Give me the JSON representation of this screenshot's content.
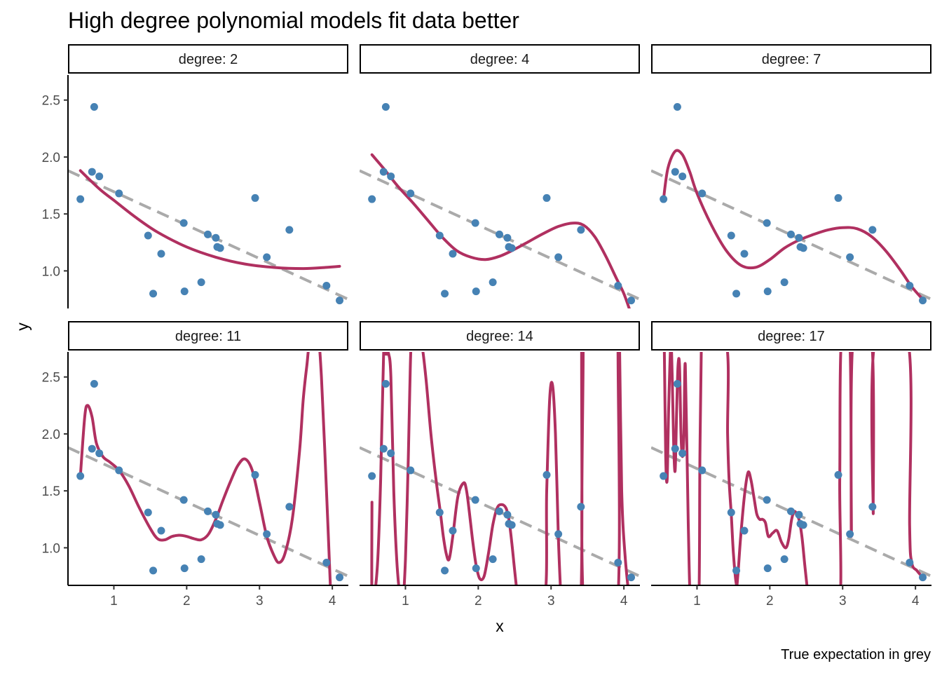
{
  "chart_data": {
    "type": "scatter",
    "title": "High degree polynomial models fit data better",
    "xlabel": "x",
    "ylabel": "y",
    "caption": "True expectation in grey",
    "facet_prefix": "degree: ",
    "xlim": [
      0.37,
      4.22
    ],
    "ylim": [
      0.67,
      2.72
    ],
    "x_ticks": [
      1,
      2,
      3,
      4
    ],
    "x_tick_labels": [
      "1",
      "2",
      "3",
      "4"
    ],
    "y_ticks": [
      1.0,
      1.5,
      2.0,
      2.5
    ],
    "y_tick_labels": [
      "1.0",
      "1.5",
      "2.0",
      "2.5"
    ],
    "grid": false,
    "colors": {
      "points": "#4682b4",
      "fit": "#b03060",
      "truth": "#aaaaaa"
    },
    "points": [
      {
        "x": 0.54,
        "y": 1.63
      },
      {
        "x": 0.7,
        "y": 1.87
      },
      {
        "x": 0.73,
        "y": 2.44
      },
      {
        "x": 0.8,
        "y": 1.83
      },
      {
        "x": 1.07,
        "y": 1.68
      },
      {
        "x": 1.47,
        "y": 1.31
      },
      {
        "x": 1.54,
        "y": 0.8
      },
      {
        "x": 1.65,
        "y": 1.15
      },
      {
        "x": 1.96,
        "y": 1.42
      },
      {
        "x": 1.97,
        "y": 0.82
      },
      {
        "x": 2.2,
        "y": 0.9
      },
      {
        "x": 2.29,
        "y": 1.32
      },
      {
        "x": 2.4,
        "y": 1.29
      },
      {
        "x": 2.42,
        "y": 1.21
      },
      {
        "x": 2.46,
        "y": 1.2
      },
      {
        "x": 2.94,
        "y": 1.64
      },
      {
        "x": 3.1,
        "y": 1.12
      },
      {
        "x": 3.41,
        "y": 1.36
      },
      {
        "x": 3.92,
        "y": 0.87
      },
      {
        "x": 4.1,
        "y": 0.74
      }
    ],
    "truth_line": {
      "x": [
        0.37,
        4.22
      ],
      "y": [
        1.88,
        0.75
      ]
    },
    "panels": [
      {
        "degree": "2",
        "fit": {
          "x": [
            0.54,
            0.8,
            1.0,
            1.3,
            1.6,
            2.0,
            2.4,
            2.8,
            3.2,
            3.6,
            3.9,
            4.1
          ],
          "y": [
            1.88,
            1.72,
            1.62,
            1.47,
            1.34,
            1.21,
            1.12,
            1.06,
            1.03,
            1.02,
            1.03,
            1.04
          ]
        }
      },
      {
        "degree": "4",
        "fit": {
          "x": [
            0.54,
            0.7,
            0.9,
            1.1,
            1.3,
            1.5,
            1.7,
            1.9,
            2.1,
            2.3,
            2.5,
            2.7,
            2.9,
            3.1,
            3.3,
            3.45,
            3.6,
            3.75,
            3.9,
            4.0,
            4.1
          ],
          "y": [
            2.02,
            1.9,
            1.74,
            1.6,
            1.45,
            1.3,
            1.18,
            1.12,
            1.1,
            1.13,
            1.19,
            1.26,
            1.33,
            1.39,
            1.42,
            1.4,
            1.3,
            1.13,
            0.93,
            0.8,
            0.62
          ]
        }
      },
      {
        "degree": "7",
        "fit": {
          "x": [
            0.54,
            0.6,
            0.7,
            0.8,
            0.9,
            1.0,
            1.2,
            1.4,
            1.6,
            1.8,
            2.0,
            2.2,
            2.4,
            2.6,
            2.8,
            3.0,
            3.2,
            3.4,
            3.6,
            3.8,
            3.95,
            4.1
          ],
          "y": [
            1.63,
            1.9,
            2.05,
            2.02,
            1.87,
            1.68,
            1.4,
            1.18,
            1.05,
            1.03,
            1.1,
            1.2,
            1.27,
            1.32,
            1.36,
            1.38,
            1.37,
            1.3,
            1.17,
            1.0,
            0.86,
            0.75
          ]
        }
      },
      {
        "degree": "11",
        "fit": {
          "x": [
            0.54,
            0.6,
            0.64,
            0.7,
            0.76,
            0.85,
            0.95,
            1.07,
            1.2,
            1.35,
            1.5,
            1.6,
            1.7,
            1.8,
            1.9,
            2.0,
            2.1,
            2.2,
            2.3,
            2.4,
            2.5,
            2.6,
            2.7,
            2.8,
            2.9,
            3.0,
            3.1,
            3.2,
            3.27,
            3.35,
            3.45,
            3.55,
            3.6,
            3.65,
            3.7,
            3.8,
            3.85,
            3.92,
            3.98
          ],
          "y": [
            1.63,
            2.15,
            2.25,
            2.15,
            1.92,
            1.8,
            1.75,
            1.68,
            1.55,
            1.35,
            1.17,
            1.08,
            1.07,
            1.1,
            1.11,
            1.1,
            1.08,
            1.07,
            1.12,
            1.25,
            1.42,
            1.58,
            1.72,
            1.78,
            1.68,
            1.4,
            1.1,
            0.93,
            0.87,
            0.95,
            1.25,
            1.85,
            2.3,
            2.6,
            2.85,
            2.85,
            2.5,
            1.5,
            0.55
          ]
        }
      },
      {
        "degree": "14",
        "fit": {
          "x": [
            0.54,
            0.54,
            0.58,
            0.62,
            0.66,
            0.7,
            0.73,
            0.75,
            0.77,
            0.8,
            0.84,
            0.88,
            0.92,
            0.96,
            1.0,
            1.04,
            1.06,
            1.08,
            1.12,
            1.16,
            1.22,
            1.28,
            1.35,
            1.42,
            1.48,
            1.52,
            1.56,
            1.6,
            1.65,
            1.72,
            1.8,
            1.84,
            1.88,
            1.92,
            1.97,
            2.02,
            2.08,
            2.14,
            2.2,
            2.26,
            2.32,
            2.38,
            2.42,
            2.46,
            2.5,
            2.55,
            2.55,
            2.9,
            2.94,
            2.98,
            3.02,
            3.06,
            3.1,
            3.14,
            3.16,
            3.4,
            3.42,
            3.44,
            3.46,
            3.9,
            3.92,
            3.94,
            3.97,
            4.02,
            4.1
          ],
          "y": [
            1.4,
            0.5,
            0.6,
            0.9,
            1.6,
            2.7,
            2.7,
            2.7,
            2.7,
            2.5,
            1.5,
            0.9,
            0.6,
            0.5,
            0.9,
            1.8,
            2.4,
            2.8,
            2.8,
            2.8,
            2.8,
            2.5,
            2.0,
            1.6,
            1.31,
            1.1,
            0.95,
            0.9,
            1.1,
            1.45,
            1.57,
            1.5,
            1.3,
            1.08,
            0.85,
            0.73,
            0.75,
            0.95,
            1.2,
            1.35,
            1.38,
            1.35,
            1.25,
            1.05,
            0.8,
            0.5,
            0.5,
            0.5,
            1.5,
            2.3,
            2.43,
            2.0,
            1.1,
            0.5,
            0.4,
            0.4,
            2.8,
            2.8,
            0.4,
            0.4,
            2.8,
            2.8,
            1.5,
            0.9,
            0.4
          ]
        }
      },
      {
        "degree": "17",
        "fit": {
          "x": [
            0.54,
            0.55,
            0.57,
            0.59,
            0.61,
            0.64,
            0.66,
            0.68,
            0.7,
            0.72,
            0.74,
            0.76,
            0.78,
            0.8,
            0.82,
            0.84,
            0.88,
            0.92,
            1.02,
            1.04,
            1.06,
            1.08,
            1.4,
            1.42,
            1.44,
            1.47,
            1.5,
            1.54,
            1.56,
            1.6,
            1.65,
            1.7,
            1.74,
            1.78,
            1.82,
            1.86,
            1.9,
            1.94,
            1.98,
            2.04,
            2.1,
            2.16,
            2.22,
            2.26,
            2.3,
            2.34,
            2.4,
            2.44,
            2.48,
            2.52,
            2.54,
            2.94,
            2.96,
            2.98,
            3.1,
            3.12,
            3.14,
            3.4,
            3.42,
            3.44,
            3.9,
            3.92,
            3.95,
            4.02,
            4.1
          ],
          "y": [
            2.8,
            2.8,
            1.8,
            1.6,
            2.2,
            2.8,
            2.5,
            1.9,
            1.68,
            2.2,
            2.6,
            2.6,
            2.0,
            1.8,
            2.0,
            2.6,
            1.2,
            0.4,
            0.4,
            1.8,
            2.8,
            2.8,
            2.8,
            2.0,
            1.6,
            1.3,
            0.95,
            0.68,
            0.75,
            1.1,
            1.45,
            1.66,
            1.6,
            1.45,
            1.3,
            1.25,
            1.25,
            1.22,
            1.1,
            1.13,
            1.15,
            1.05,
            1.0,
            1.08,
            1.25,
            1.32,
            1.25,
            1.1,
            0.85,
            0.6,
            0.4,
            0.4,
            1.6,
            2.8,
            2.8,
            1.1,
            2.8,
            2.8,
            1.3,
            2.8,
            2.8,
            1.2,
            0.87,
            0.8,
            0.74
          ]
        }
      }
    ]
  }
}
